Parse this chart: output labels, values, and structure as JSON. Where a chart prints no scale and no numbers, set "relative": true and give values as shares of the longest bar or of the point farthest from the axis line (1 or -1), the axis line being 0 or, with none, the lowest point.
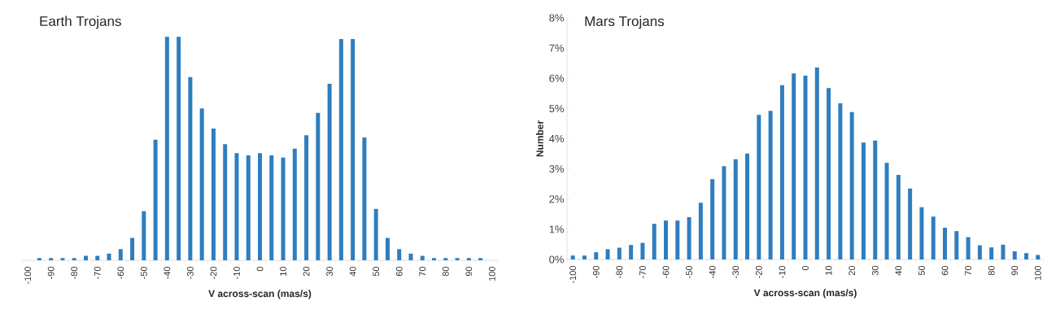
{
  "chart_data": [
    {
      "type": "bar",
      "title": "Earth Trojans",
      "xlabel": "V across-scan (mas/s)",
      "relative": true,
      "color": "#2e7ebf",
      "categories": [
        "-100",
        null,
        "-90",
        null,
        "-80",
        null,
        "-70",
        null,
        "-60",
        null,
        "-50",
        null,
        "-40",
        null,
        "-30",
        null,
        "-20",
        null,
        "-10",
        null,
        "0",
        null,
        "10",
        null,
        "20",
        null,
        "30",
        null,
        "40",
        null,
        "50",
        null,
        "60",
        null,
        "70",
        null,
        "80",
        null,
        "90",
        null,
        "100"
      ],
      "values": [
        0,
        0.01,
        0.01,
        0.01,
        0.01,
        0.02,
        0.02,
        0.03,
        0.05,
        0.1,
        0.22,
        0.54,
        1,
        1.0,
        0.82,
        0.68,
        0.59,
        0.52,
        0.48,
        0.47,
        0.48,
        0.47,
        0.46,
        0.5,
        0.56,
        0.66,
        0.79,
        0.99,
        0.99,
        0.55,
        0.23,
        0.1,
        0.05,
        0.03,
        0.02,
        0.01,
        0.01,
        0.01,
        0.01,
        0.01,
        0
      ]
    },
    {
      "type": "bar",
      "title": "Mars Trojans",
      "xlabel": "V across-scan (mas/s)",
      "ylabel": "Number",
      "color": "#2e7ebf",
      "categories": [
        "-100",
        null,
        "-90",
        null,
        "-80",
        null,
        "-70",
        null,
        "-60",
        null,
        "-50",
        null,
        "-40",
        null,
        "-30",
        null,
        "-20",
        null,
        "-10",
        null,
        "0",
        null,
        "10",
        null,
        "20",
        null,
        "30",
        null,
        "40",
        null,
        "50",
        null,
        "60",
        null,
        "70",
        null,
        "80",
        null,
        "90",
        null,
        "100"
      ],
      "values": [
        0.13,
        0.13,
        0.24,
        0.34,
        0.39,
        0.48,
        0.55,
        1.18,
        1.29,
        1.29,
        1.4,
        1.88,
        2.66,
        3.09,
        3.32,
        3.51,
        4.79,
        4.92,
        5.77,
        6.16,
        6.09,
        6.36,
        5.68,
        5.17,
        4.88,
        3.87,
        3.94,
        3.2,
        2.8,
        2.35,
        1.73,
        1.42,
        1.05,
        0.94,
        0.74,
        0.47,
        0.4,
        0.49,
        0.27,
        0.21,
        0.15
      ],
      "ylim": [
        0,
        8
      ],
      "yticks": [
        {
          "value": 0,
          "label": "0%"
        },
        {
          "value": 1,
          "label": "1%"
        },
        {
          "value": 2,
          "label": "2%"
        },
        {
          "value": 3,
          "label": "3%"
        },
        {
          "value": 4,
          "label": "4%"
        },
        {
          "value": 5,
          "label": "5%"
        },
        {
          "value": 6,
          "label": "6%"
        },
        {
          "value": 7,
          "label": "7%"
        },
        {
          "value": 8,
          "label": "8%"
        }
      ]
    }
  ]
}
